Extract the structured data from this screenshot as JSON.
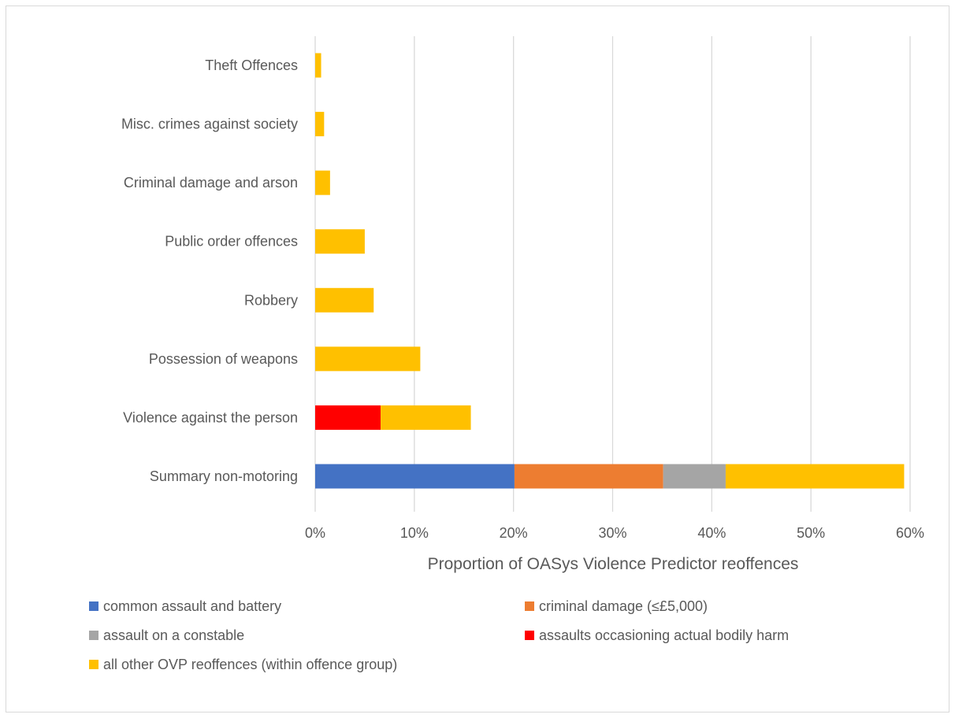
{
  "chart_data": {
    "type": "bar",
    "orientation": "horizontal",
    "stacked": true,
    "categories": [
      "Summary non-motoring",
      "Violence against the person",
      "Possession of weapons",
      "Robbery",
      "Public order offences",
      "Criminal damage and arson",
      "Misc. crimes against society",
      "Theft Offences"
    ],
    "series": [
      {
        "name": "common assault and battery",
        "color": "#4472c4",
        "values": [
          20.1,
          0,
          0,
          0,
          0,
          0,
          0,
          0
        ]
      },
      {
        "name": "criminal damage (≤£5,000)",
        "color": "#ed7d31",
        "values": [
          15.0,
          0,
          0,
          0,
          0,
          0,
          0,
          0
        ]
      },
      {
        "name": "assault on a constable",
        "color": "#a5a5a5",
        "values": [
          6.3,
          0,
          0,
          0,
          0,
          0,
          0,
          0
        ]
      },
      {
        "name": "assaults occasioning actual bodily harm",
        "color": "#ff0000",
        "values": [
          0,
          6.6,
          0,
          0,
          0,
          0,
          0,
          0
        ]
      },
      {
        "name": "all other OVP reoffences (within offence group)",
        "color": "#ffc000",
        "values": [
          18.0,
          9.1,
          10.6,
          5.9,
          5.0,
          1.5,
          0.9,
          0.6
        ]
      }
    ],
    "xlabel": "Proportion of OASys Violence Predictor reoffences",
    "ylabel": "",
    "xlim": [
      0,
      60
    ],
    "xticks": [
      "0%",
      "10%",
      "20%",
      "30%",
      "40%",
      "50%",
      "60%"
    ],
    "grid": "vertical",
    "legend_position": "bottom"
  }
}
